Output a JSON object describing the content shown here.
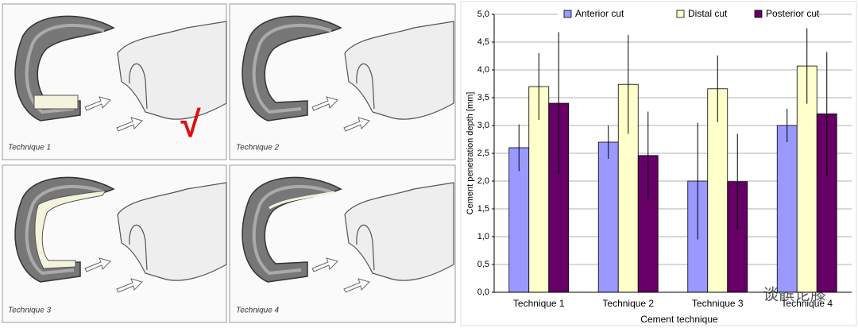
{
  "illustrations": {
    "panels": [
      {
        "label": "Technique 1"
      },
      {
        "label": "Technique 2"
      },
      {
        "label": "Technique 3"
      },
      {
        "label": "Technique 4"
      }
    ],
    "check_mark": "√"
  },
  "watermark": "谈髌论膝",
  "chart_data": {
    "type": "bar",
    "y_label": "Cement penetration depth [mm]",
    "x_label": "Cement technique",
    "categories": [
      "Technique 1",
      "Technique 2",
      "Technique 3",
      "Technique 4"
    ],
    "series": [
      {
        "name": "Anterior cut",
        "color": "#9999ff",
        "values": [
          2.6,
          2.7,
          2.0,
          3.0
        ],
        "errors": [
          0.42,
          0.3,
          1.05,
          0.3
        ]
      },
      {
        "name": "Distal cut",
        "color": "#ffffcc",
        "values": [
          3.7,
          3.74,
          3.66,
          4.07
        ],
        "errors": [
          0.6,
          0.89,
          0.6,
          0.68
        ]
      },
      {
        "name": "Posterior cut",
        "color": "#660066",
        "values": [
          3.4,
          2.46,
          1.99,
          3.21
        ],
        "errors": [
          1.28,
          0.79,
          0.86,
          1.11
        ]
      }
    ],
    "ylim": [
      0,
      5
    ],
    "yticks": [
      {
        "value": 0,
        "label": "0,0"
      },
      {
        "value": 0.5,
        "label": "0,5"
      },
      {
        "value": 1,
        "label": "1,0"
      },
      {
        "value": 1.5,
        "label": "1,5"
      },
      {
        "value": 2,
        "label": "2,0"
      },
      {
        "value": 2.5,
        "label": "2,5"
      },
      {
        "value": 3,
        "label": "3,0"
      },
      {
        "value": 3.5,
        "label": "3,5"
      },
      {
        "value": 4,
        "label": "4,0"
      },
      {
        "value": 4.5,
        "label": "4,5"
      },
      {
        "value": 5,
        "label": "5,0"
      }
    ],
    "grid": true,
    "legend": "top"
  }
}
